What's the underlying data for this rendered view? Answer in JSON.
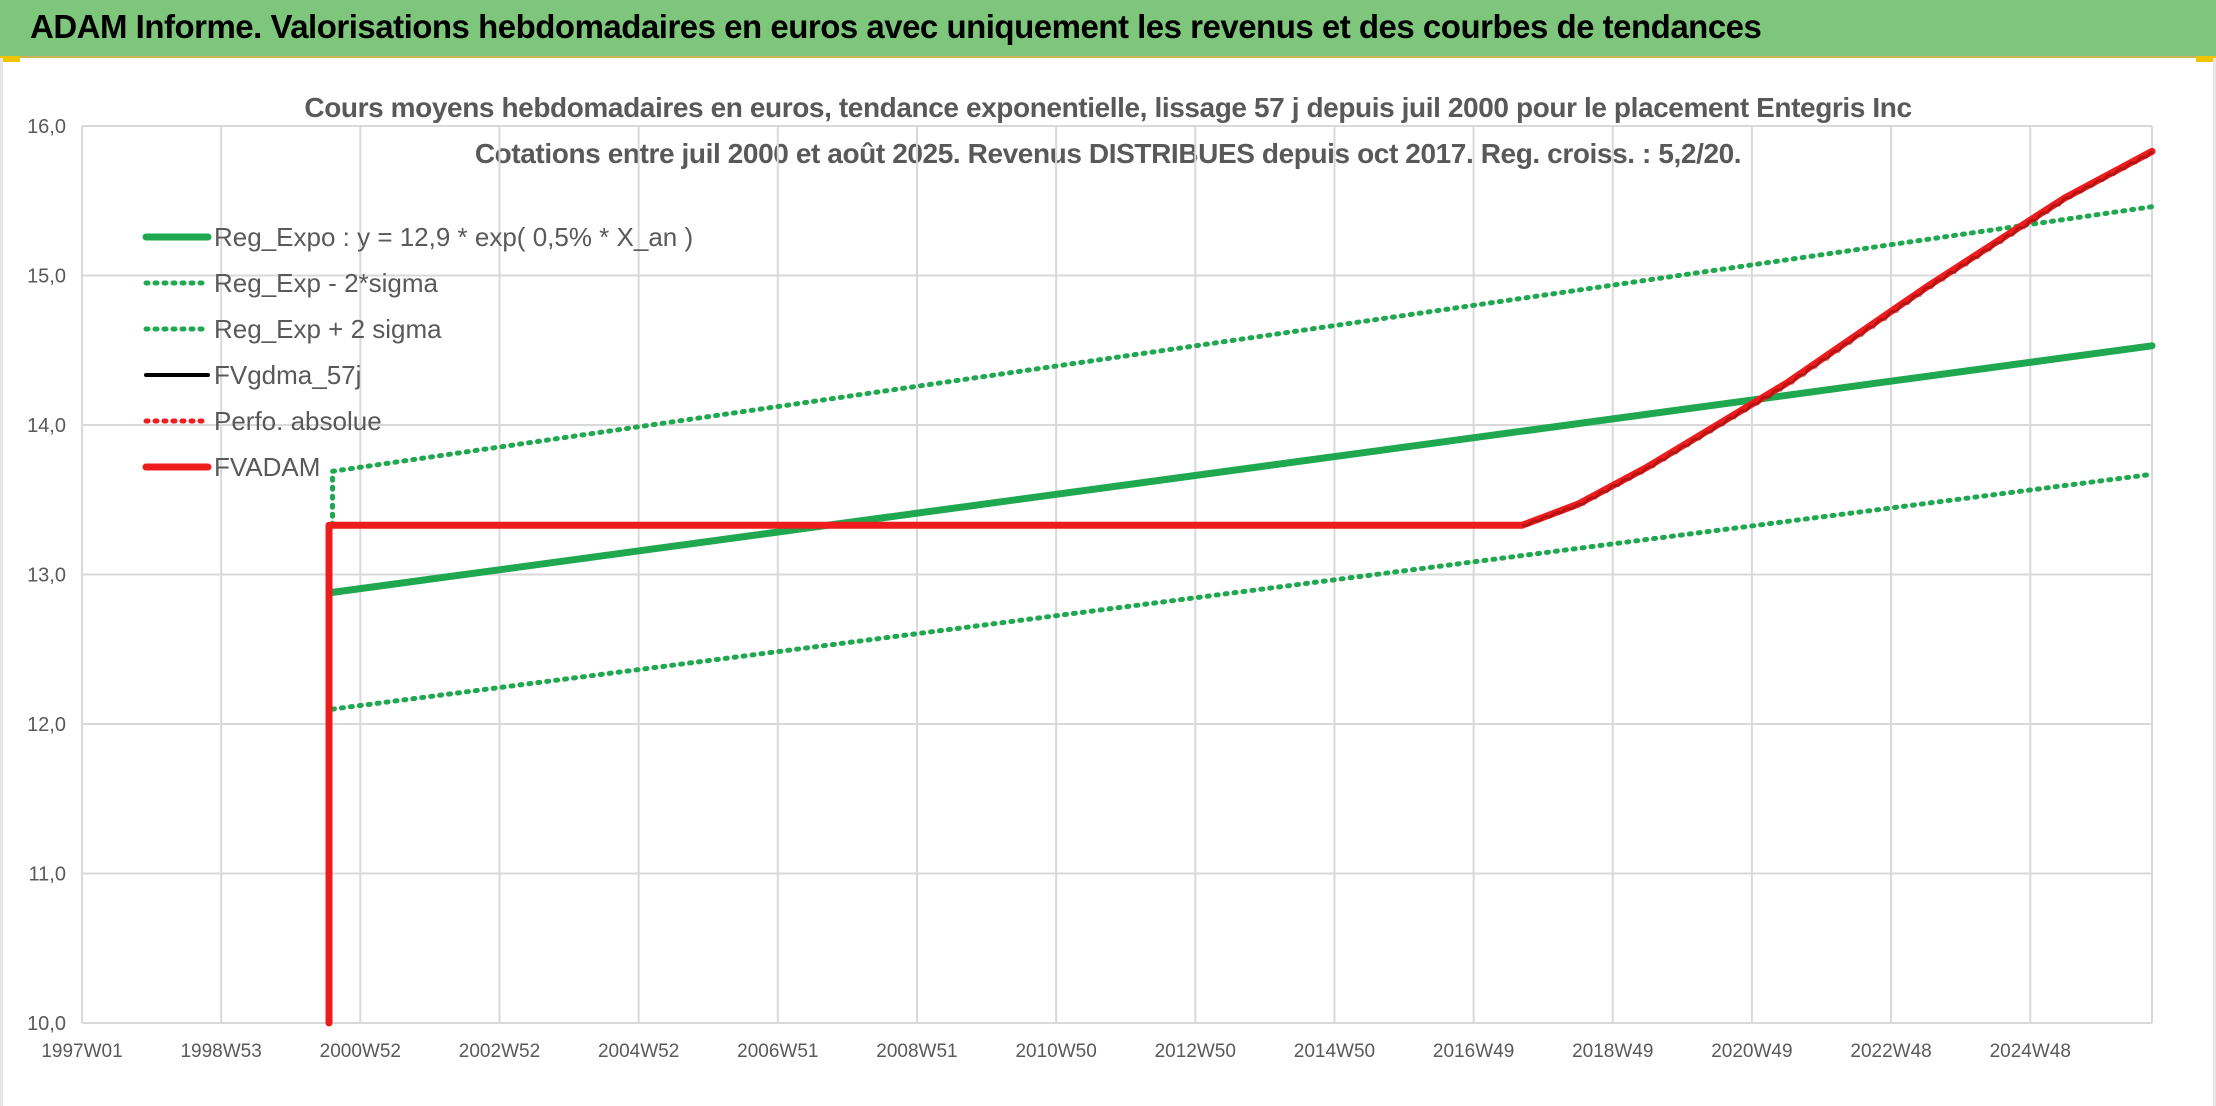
{
  "banner": {
    "title": "ADAM Informe. Valorisations hebdomadaires en euros avec uniquement les revenus et des courbes de tendances"
  },
  "colors": {
    "banner_bg": "#7dc67b",
    "reg_green": "#1fa84f",
    "red": "#ee1c1c",
    "black": "#000000",
    "grid": "#d9d9d9",
    "text": "#595959"
  },
  "chart_data": {
    "type": "line",
    "title": "Cours moyens hebdomadaires en euros, tendance exponentielle, lissage 57 j depuis juil 2000 pour le placement Entegris Inc",
    "subtitle": "Cotations entre juil 2000 et août 2025. Revenus DISTRIBUES depuis oct 2017. Reg. croiss. : 5,2/20.",
    "x_tick_labels": [
      "1997W01",
      "1998W53",
      "2000W52",
      "2002W52",
      "2004W52",
      "2006W51",
      "2008W51",
      "2010W50",
      "2012W50",
      "2014W50",
      "2016W49",
      "2018W49",
      "2020W49",
      "2022W48",
      "2024W48"
    ],
    "x_tick_years": [
      1997.0,
      1999.0,
      2001.0,
      2003.0,
      2005.0,
      2007.0,
      2009.0,
      2011.0,
      2013.0,
      2015.0,
      2017.0,
      2019.0,
      2021.0,
      2023.0,
      2025.0
    ],
    "xlim": [
      1997.0,
      2026.75
    ],
    "ylim": [
      10.0,
      16.0
    ],
    "y_ticks": [
      "10,0",
      "11,0",
      "12,0",
      "13,0",
      "14,0",
      "15,0",
      "16,0"
    ],
    "y_tick_values": [
      10,
      11,
      12,
      13,
      14,
      15,
      16
    ],
    "grid": true,
    "legend_position": "top-left",
    "series": [
      {
        "name": "Reg_Expo : y = 12,9 * exp( 0,5% *  X_an )",
        "style": "solid-thick",
        "color": "#1fa84f",
        "x": [
          2000.6,
          2026.75
        ],
        "y": [
          12.88,
          14.53
        ]
      },
      {
        "name": "Reg_Exp - 2*sigma",
        "style": "dotted",
        "color": "#1fa84f",
        "x": [
          2000.6,
          2026.75
        ],
        "y": [
          12.1,
          13.67
        ]
      },
      {
        "name": "Reg_Exp + 2 sigma",
        "style": "dotted",
        "color": "#1fa84f",
        "x": [
          2000.6,
          2000.6,
          2026.75
        ],
        "y": [
          13.33,
          13.69,
          15.46
        ]
      },
      {
        "name": "FVgdma_57j",
        "style": "solid",
        "color": "#000000",
        "x": [
          2016.8,
          2017.7
        ],
        "y": [
          13.33,
          13.33
        ]
      },
      {
        "name": "Perfo. absolue",
        "style": "dotted",
        "color": "#ee1c1c",
        "x": [],
        "y": []
      },
      {
        "name": "FVADAM",
        "style": "solid-thick",
        "color": "#ee1c1c",
        "x": [
          2000.55,
          2000.55,
          2017.7,
          2018.5,
          2019.5,
          2020.5,
          2021.5,
          2022.5,
          2023.5,
          2024.5,
          2025.5,
          2026.75
        ],
        "y": [
          10.0,
          13.33,
          13.33,
          13.47,
          13.72,
          14.0,
          14.28,
          14.6,
          14.92,
          15.22,
          15.52,
          15.83
        ]
      }
    ]
  }
}
